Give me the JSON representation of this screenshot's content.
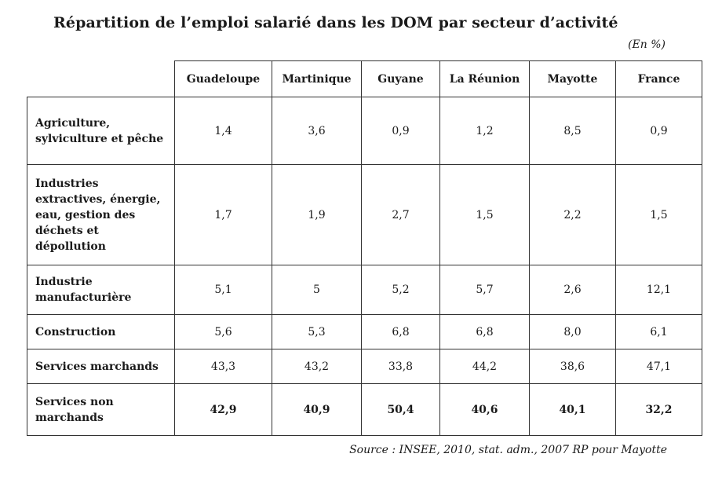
{
  "title": "Répartition de l’emploi salarié dans les DOM par secteur d’activité",
  "unit": "(En %)",
  "table": {
    "columns": [
      "Guadeloupe",
      "Martinique",
      "Guyane",
      "La Réunion",
      "Mayotte",
      "France"
    ],
    "rows": [
      {
        "label": "Agriculture, sylviculture et pêche",
        "values": [
          "1,4",
          "3,6",
          "0,9",
          "1,2",
          "8,5",
          "0,9"
        ]
      },
      {
        "label": "Industries extractives, énergie, eau, gestion des déchets et dépollution",
        "values": [
          "1,7",
          "1,9",
          "2,7",
          "1,5",
          "2,2",
          "1,5"
        ]
      },
      {
        "label": "Industrie manufacturière",
        "values": [
          "5,1",
          "5",
          "5,2",
          "5,7",
          "2,6",
          "12,1"
        ]
      },
      {
        "label": "Construction",
        "values": [
          "5,6",
          "5,3",
          "6,8",
          "6,8",
          "8,0",
          "6,1"
        ]
      },
      {
        "label": "Services marchands",
        "values": [
          "43,3",
          "43,2",
          "33,8",
          "44,2",
          "38,6",
          "47,1"
        ]
      },
      {
        "label": "Services non marchands",
        "values": [
          "42,9",
          "40,9",
          "50,4",
          "40,6",
          "40,1",
          "32,2"
        ]
      }
    ]
  },
  "source": "Source : INSEE, 2010, stat. adm., 2007 RP pour Mayotte"
}
